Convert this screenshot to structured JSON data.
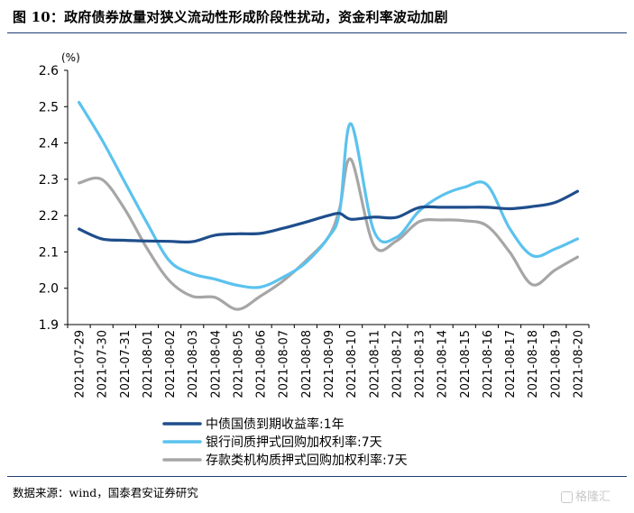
{
  "title": "图 10：政府债券放量对狭义流动性形成阶段性扰动，资金利率波动加剧",
  "source": "数据来源：wind，国泰君安证券研究",
  "watermark": "格隆汇",
  "chart_data": {
    "type": "line",
    "title": "图 10：政府债券放量对狭义流动性形成阶段性扰动，资金利率波动加剧",
    "ylabel": "(%)",
    "xlabel": "",
    "ylim": [
      1.9,
      2.6
    ],
    "yticks": [
      "1.9",
      "2.0",
      "2.1",
      "2.2",
      "2.3",
      "2.4",
      "2.5",
      "2.6"
    ],
    "ytick_values": [
      1.9,
      2.0,
      2.1,
      2.2,
      2.3,
      2.4,
      2.5,
      2.6
    ],
    "categories": [
      "2021-07-29",
      "2021-07-30",
      "2021-07-31",
      "2021-08-01",
      "2021-08-02",
      "2021-08-03",
      "2021-08-04",
      "2021-08-05",
      "2021-08-06",
      "2021-08-07",
      "2021-08-08",
      "2021-08-09",
      "2021-08-10",
      "2021-08-11",
      "2021-08-12",
      "2021-08-13",
      "2021-08-14",
      "2021-08-15",
      "2021-08-16",
      "2021-08-17",
      "2021-08-18",
      "2021-08-19",
      "2021-08-20"
    ],
    "grid": false,
    "legend_position": "bottom",
    "series": [
      {
        "name": "中债国债到期收益率:1年",
        "color": "#1f4e8c",
        "x": [
          0,
          1,
          2,
          3,
          4,
          5,
          6,
          7,
          8,
          9,
          10,
          11,
          11.5,
          12,
          13,
          14,
          15,
          16,
          17,
          18,
          19,
          20,
          21,
          22
        ],
        "values": [
          2.163,
          2.136,
          2.132,
          2.13,
          2.129,
          2.128,
          2.146,
          2.15,
          2.151,
          2.165,
          2.182,
          2.2,
          2.206,
          2.19,
          2.196,
          2.195,
          2.222,
          2.223,
          2.223,
          2.223,
          2.219,
          2.225,
          2.236,
          2.267
        ]
      },
      {
        "name": "银行间质押式回购加权利率:7天",
        "color": "#5bc2ee",
        "x": [
          0,
          1,
          2,
          3,
          4,
          5,
          6,
          7,
          8,
          9,
          10,
          11,
          11.5,
          12,
          13,
          14,
          15,
          16,
          17,
          18,
          19,
          20,
          21,
          22
        ],
        "values": [
          2.512,
          2.41,
          2.295,
          2.18,
          2.075,
          2.04,
          2.025,
          2.008,
          2.003,
          2.03,
          2.07,
          2.14,
          2.21,
          2.453,
          2.16,
          2.14,
          2.212,
          2.255,
          2.278,
          2.285,
          2.165,
          2.09,
          2.108,
          2.136
        ]
      },
      {
        "name": "存款类机构质押式回购加权利率:7天",
        "color": "#a6a6a6",
        "x": [
          0,
          1,
          2,
          3,
          4,
          5,
          6,
          7,
          8,
          9,
          10,
          11,
          11.5,
          12,
          13,
          14,
          15,
          16,
          17,
          18,
          19,
          20,
          21,
          22
        ],
        "values": [
          2.29,
          2.3,
          2.22,
          2.11,
          2.02,
          1.978,
          1.975,
          1.942,
          1.978,
          2.02,
          2.075,
          2.14,
          2.22,
          2.355,
          2.12,
          2.13,
          2.183,
          2.188,
          2.186,
          2.172,
          2.1,
          2.01,
          2.05,
          2.086
        ]
      }
    ]
  }
}
